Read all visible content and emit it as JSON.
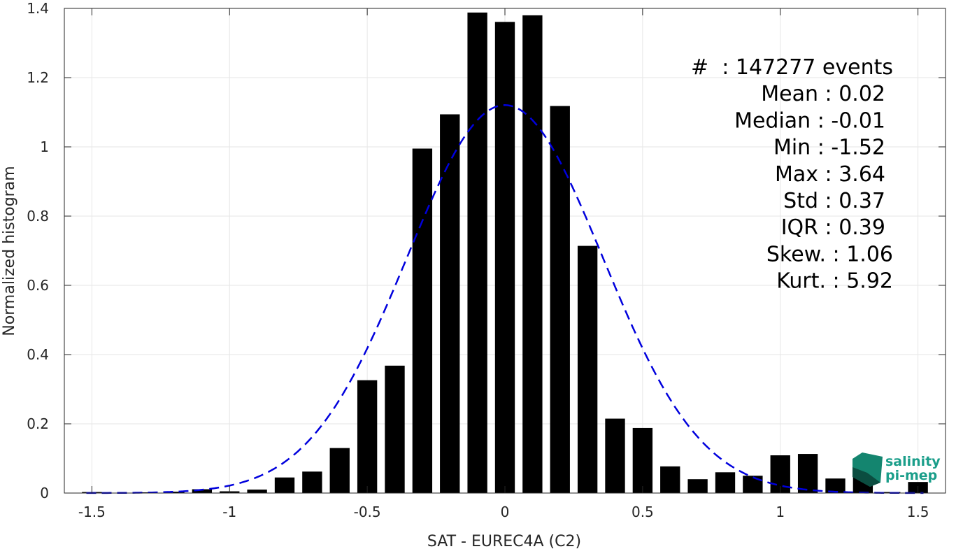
{
  "chart_data": {
    "type": "bar",
    "xlabel": "SAT - EUREC4A (C2)",
    "ylabel": "Normalized histogram",
    "xlim": [
      -1.6,
      1.6
    ],
    "ylim": [
      0,
      1.4
    ],
    "x_ticks": [
      -1.5,
      -1,
      -0.5,
      0,
      0.5,
      1,
      1.5
    ],
    "x_tick_labels": [
      "-1.5",
      "-1",
      "-0.5",
      "0",
      "0.5",
      "1",
      "1.5"
    ],
    "y_ticks": [
      0,
      0.2,
      0.4,
      0.6,
      0.8,
      1,
      1.2,
      1.4
    ],
    "y_tick_labels": [
      "0",
      "0.2",
      "0.4",
      "0.6",
      "0.8",
      "1",
      "1.2",
      "1.4"
    ],
    "grid": true,
    "bin_width": 0.1,
    "bar_color": "#000000",
    "x": [
      -1.5,
      -1.4,
      -1.3,
      -1.2,
      -1.1,
      -1.0,
      -0.9,
      -0.8,
      -0.7,
      -0.6,
      -0.5,
      -0.4,
      -0.3,
      -0.2,
      -0.1,
      0.0,
      0.1,
      0.2,
      0.3,
      0.4,
      0.5,
      0.6,
      0.7,
      0.8,
      0.9,
      1.0,
      1.1,
      1.2,
      1.3,
      1.4,
      1.5
    ],
    "values": [
      0.003,
      0.001,
      0.002,
      0.004,
      0.011,
      0.005,
      0.01,
      0.045,
      0.062,
      0.13,
      0.326,
      0.368,
      0.995,
      1.094,
      1.388,
      1.361,
      1.38,
      1.118,
      0.714,
      0.215,
      0.188,
      0.077,
      0.04,
      0.06,
      0.05,
      0.109,
      0.113,
      0.042,
      0.073,
      0.003,
      0.032
    ],
    "fit_curve": {
      "style": "dashed",
      "color": "#0000dd",
      "mean": 0.0,
      "std": 0.356
    },
    "stats": [
      {
        "label": "#  : 147277 events"
      },
      {
        "label": "Mean : 0.02"
      },
      {
        "label": "Median : -0.01"
      },
      {
        "label": "Min : -1.52"
      },
      {
        "label": "Max : 3.64"
      },
      {
        "label": "Std : 0.37"
      },
      {
        "label": "IQR : 0.39"
      },
      {
        "label": "Skew. : 1.06"
      },
      {
        "label": "Kurt. : 5.92"
      }
    ]
  },
  "logo": {
    "line1": "salinity",
    "line2": "pi-mep",
    "color": "#1a9e8a"
  }
}
